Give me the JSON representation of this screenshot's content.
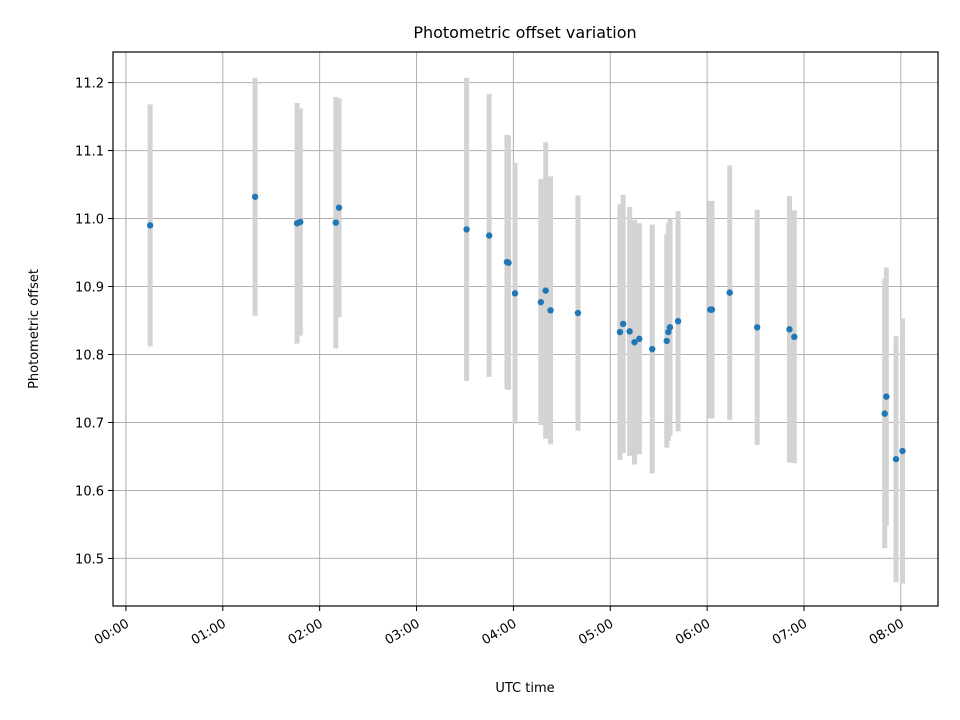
{
  "chart_data": {
    "type": "scatter",
    "title": "Photometric offset variation",
    "xlabel": "UTC time",
    "ylabel": "Photometric offset",
    "x_ticks": [
      "00:00",
      "01:00",
      "02:00",
      "03:00",
      "04:00",
      "05:00",
      "06:00",
      "07:00",
      "08:00"
    ],
    "y_ticks": [
      "10.5",
      "10.6",
      "10.7",
      "10.8",
      "10.9",
      "11.0",
      "11.1",
      "11.2"
    ],
    "xlim": [
      "-00:08",
      "08:23"
    ],
    "ylim": [
      10.43,
      11.245
    ],
    "grid": true,
    "colors": {
      "marker": "#1f77b4",
      "errorbar": "#d3d3d3",
      "grid": "#b0b0b0"
    },
    "points": [
      {
        "x": "00:15",
        "y": 10.99,
        "err": 0.178
      },
      {
        "x": "01:20",
        "y": 11.032,
        "err": 0.175
      },
      {
        "x": "01:46",
        "y": 10.993,
        "err": 0.177
      },
      {
        "x": "01:48",
        "y": 10.995,
        "err": 0.167
      },
      {
        "x": "02:10",
        "y": 10.994,
        "err": 0.185
      },
      {
        "x": "02:12",
        "y": 11.016,
        "err": 0.161
      },
      {
        "x": "03:31",
        "y": 10.984,
        "err": 0.223
      },
      {
        "x": "03:45",
        "y": 10.975,
        "err": 0.208
      },
      {
        "x": "03:56",
        "y": 10.936,
        "err": 0.187
      },
      {
        "x": "03:57",
        "y": 10.935,
        "err": 0.187
      },
      {
        "x": "04:01",
        "y": 10.89,
        "err": 0.192
      },
      {
        "x": "04:17",
        "y": 10.877,
        "err": 0.181
      },
      {
        "x": "04:20",
        "y": 10.894,
        "err": 0.218
      },
      {
        "x": "04:23",
        "y": 10.865,
        "err": 0.197
      },
      {
        "x": "04:40",
        "y": 10.861,
        "err": 0.173
      },
      {
        "x": "05:06",
        "y": 10.833,
        "err": 0.188
      },
      {
        "x": "05:08",
        "y": 10.845,
        "err": 0.19
      },
      {
        "x": "05:12",
        "y": 10.834,
        "err": 0.183
      },
      {
        "x": "05:15",
        "y": 10.818,
        "err": 0.18
      },
      {
        "x": "05:18",
        "y": 10.823,
        "err": 0.17
      },
      {
        "x": "05:26",
        "y": 10.808,
        "err": 0.183
      },
      {
        "x": "05:35",
        "y": 10.82,
        "err": 0.157
      },
      {
        "x": "05:36",
        "y": 10.833,
        "err": 0.16
      },
      {
        "x": "05:37",
        "y": 10.84,
        "err": 0.16
      },
      {
        "x": "05:42",
        "y": 10.849,
        "err": 0.162
      },
      {
        "x": "06:02",
        "y": 10.866,
        "err": 0.16
      },
      {
        "x": "06:03",
        "y": 10.866,
        "err": 0.16
      },
      {
        "x": "06:14",
        "y": 10.891,
        "err": 0.187
      },
      {
        "x": "06:31",
        "y": 10.84,
        "err": 0.173
      },
      {
        "x": "06:51",
        "y": 10.837,
        "err": 0.196
      },
      {
        "x": "06:54",
        "y": 10.826,
        "err": 0.186
      },
      {
        "x": "07:50",
        "y": 10.713,
        "err": 0.198
      },
      {
        "x": "07:51",
        "y": 10.738,
        "err": 0.19
      },
      {
        "x": "07:57",
        "y": 10.646,
        "err": 0.181
      },
      {
        "x": "08:01",
        "y": 10.658,
        "err": 0.195
      }
    ]
  }
}
